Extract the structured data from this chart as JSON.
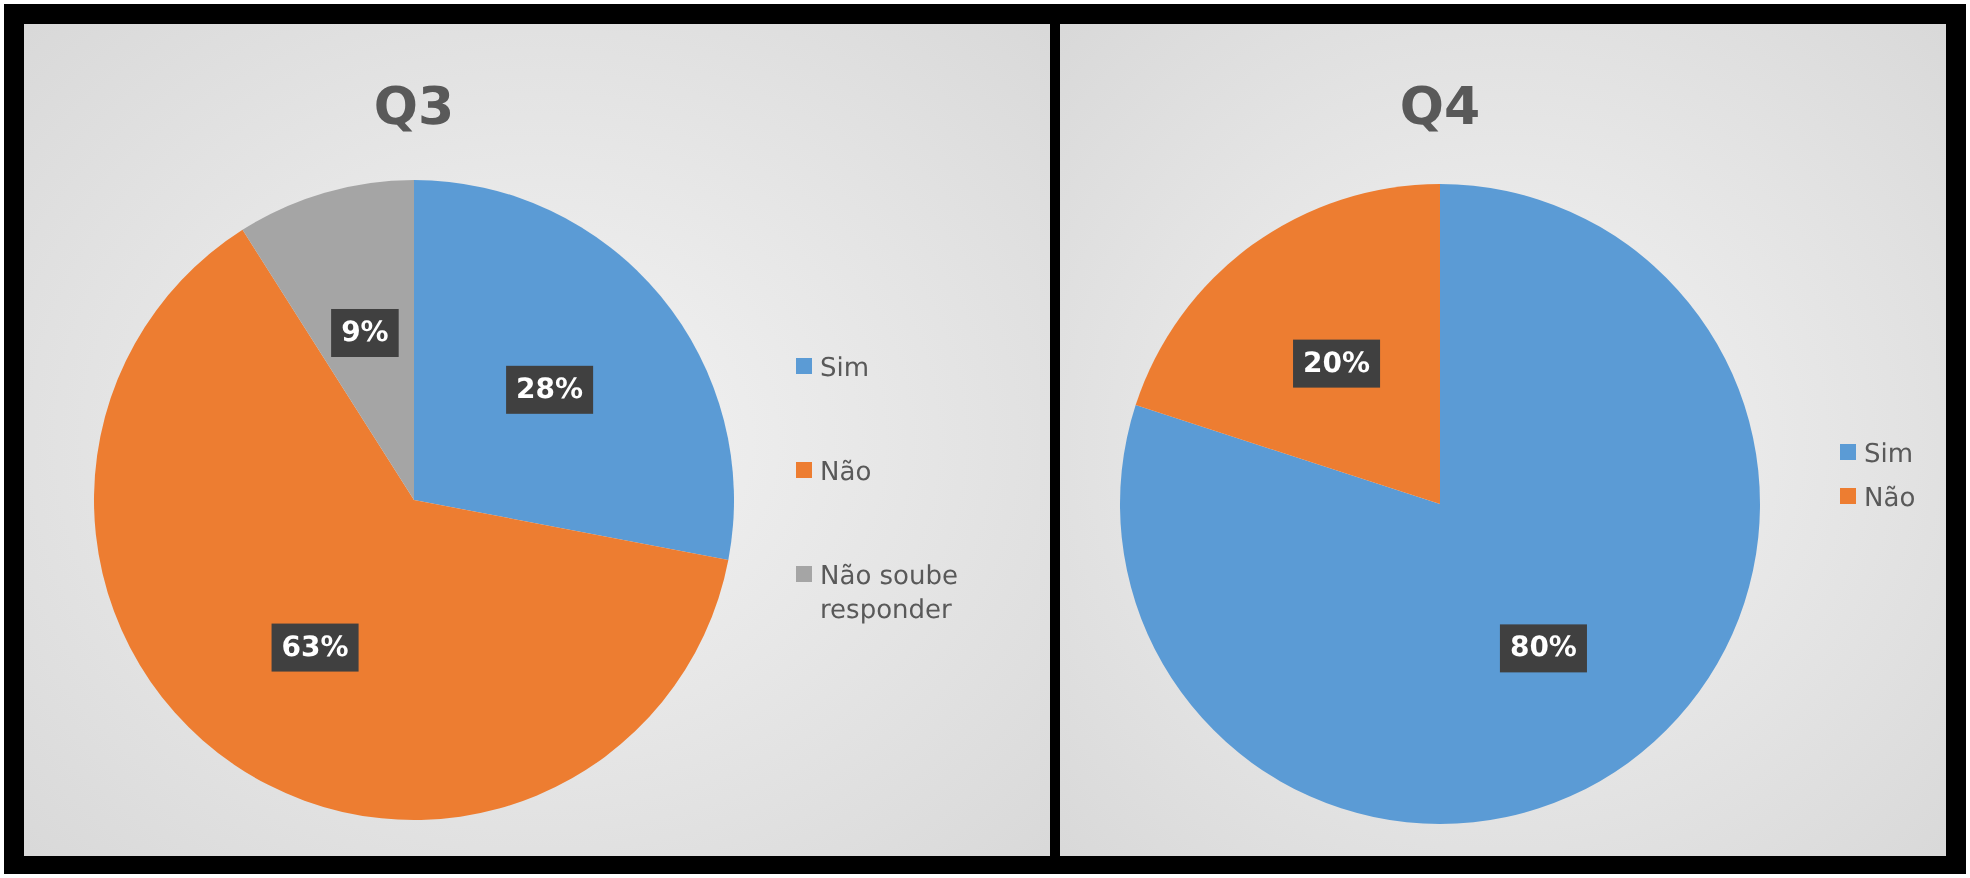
{
  "chart_data": [
    {
      "type": "pie",
      "title": "Q3",
      "categories": [
        "Sim",
        "Não",
        "Não soube responder"
      ],
      "values": [
        28,
        63,
        9
      ],
      "colors": [
        "#5b9bd5",
        "#ed7d31",
        "#a5a5a5"
      ],
      "value_labels": [
        "28%",
        "63%",
        "9%"
      ],
      "legend": "right"
    },
    {
      "type": "pie",
      "title": "Q4",
      "categories": [
        "Sim",
        "Não"
      ],
      "values": [
        80,
        20
      ],
      "colors": [
        "#5b9bd5",
        "#ed7d31"
      ],
      "value_labels": [
        "80%",
        "20%"
      ],
      "legend": "right"
    }
  ]
}
